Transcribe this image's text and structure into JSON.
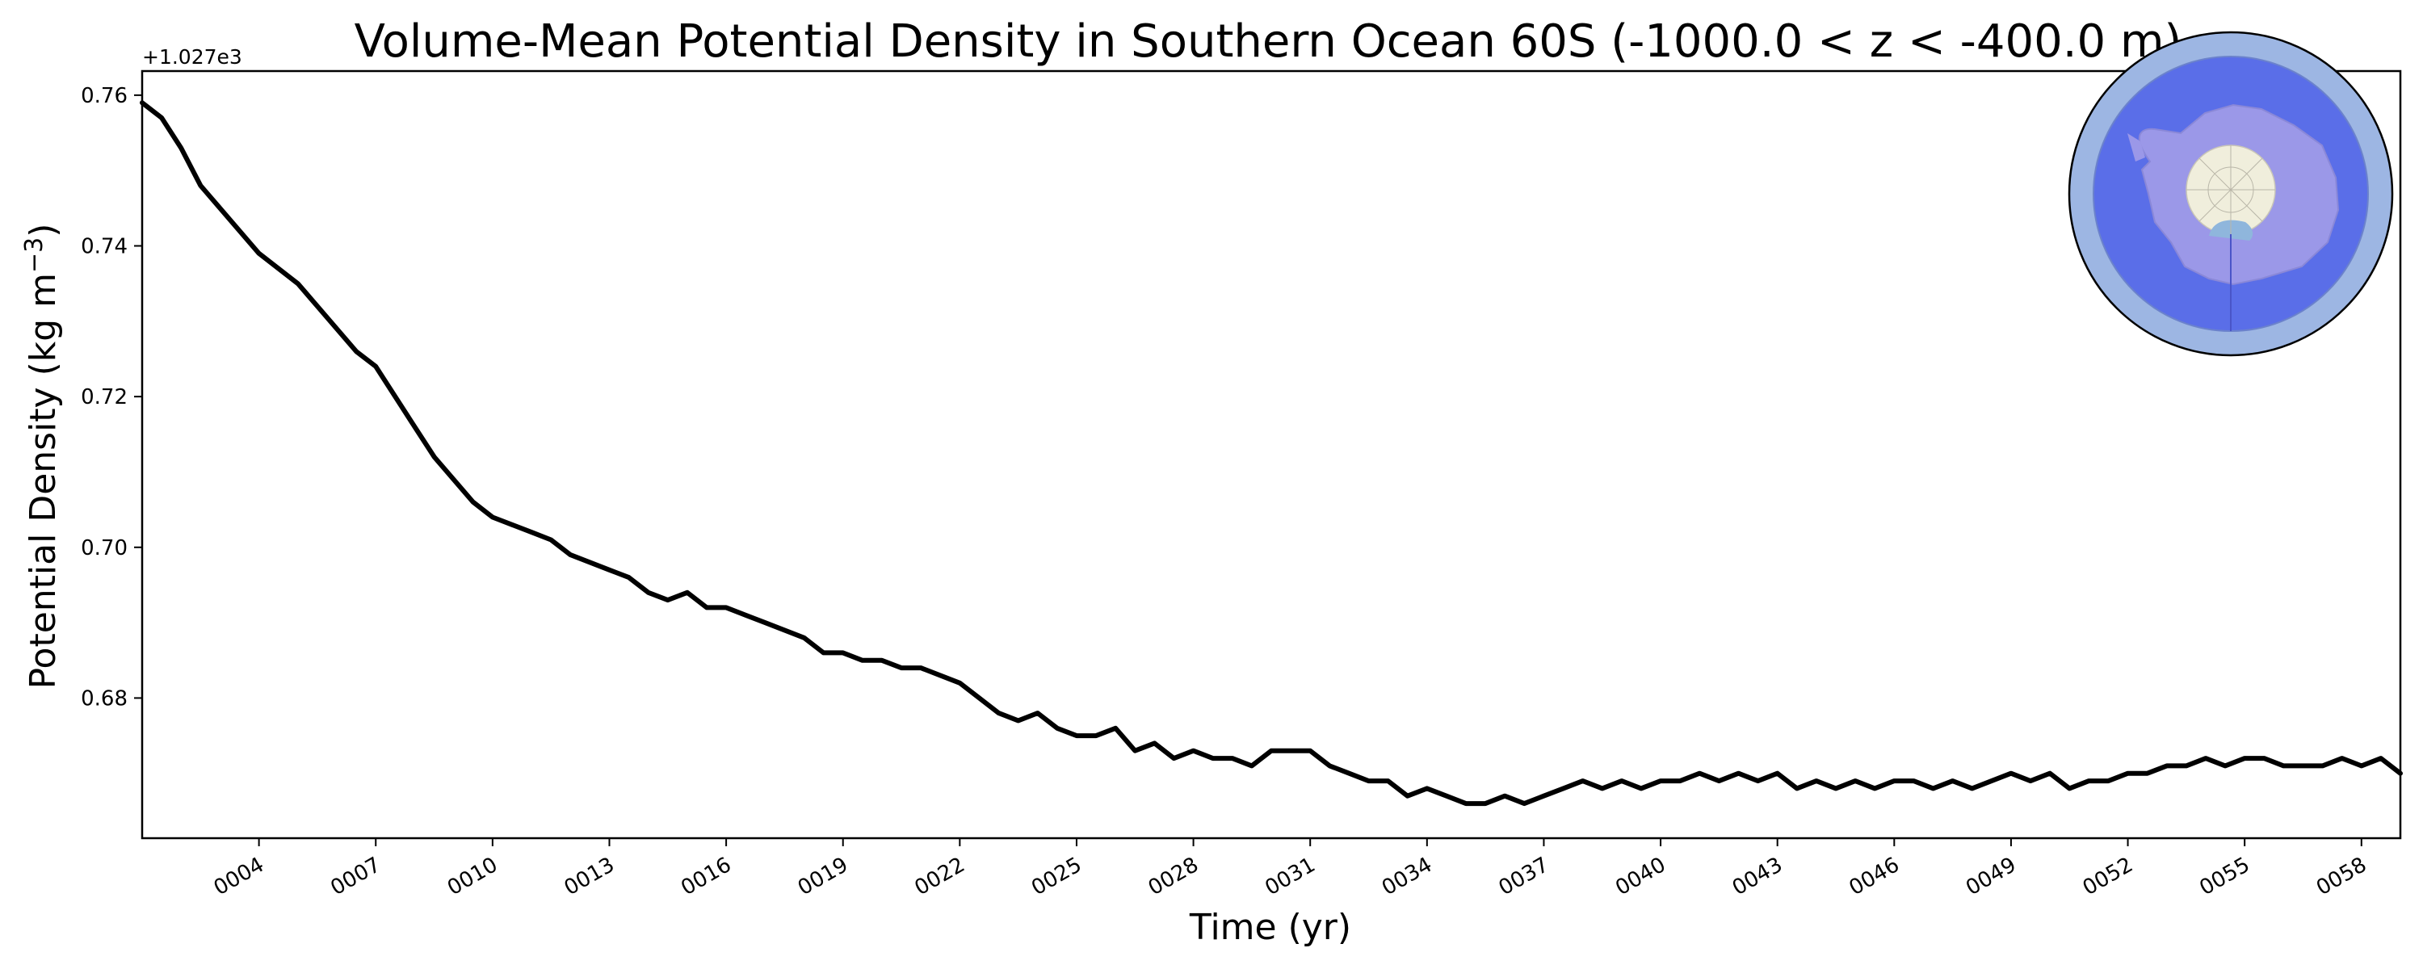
{
  "chart_data": {
    "type": "line",
    "title": "Volume-Mean Potential Density in Southern Ocean 60S (-1000.0 < z < -400.0 m)",
    "xlabel": "Time (yr)",
    "ylabel_main": "Potential Density (kg m",
    "ylabel_exp": "−3",
    "ylabel_close": ")",
    "offset_label": "+1.027e3",
    "xlim": [
      1.0,
      59.0
    ],
    "ylim": [
      0.6614,
      0.7632
    ],
    "xtick_values": [
      4,
      7,
      10,
      13,
      16,
      19,
      22,
      25,
      28,
      31,
      34,
      37,
      40,
      43,
      46,
      49,
      52,
      55,
      58
    ],
    "xtick_labels": [
      "0004",
      "0007",
      "0010",
      "0013",
      "0016",
      "0019",
      "0022",
      "0025",
      "0028",
      "0031",
      "0034",
      "0037",
      "0040",
      "0043",
      "0046",
      "0049",
      "0052",
      "0055",
      "0058"
    ],
    "ytick_values": [
      0.68,
      0.7,
      0.72,
      0.74,
      0.76
    ],
    "ytick_labels": [
      "0.68",
      "0.70",
      "0.72",
      "0.74",
      "0.76"
    ],
    "series": [
      {
        "name": "potential density",
        "color": "#000000",
        "x": [
          1.0,
          1.5,
          2.0,
          2.5,
          3.0,
          3.5,
          4.0,
          4.5,
          5.0,
          5.5,
          6.0,
          6.5,
          7.0,
          7.5,
          8.0,
          8.5,
          9.0,
          9.5,
          10.0,
          10.5,
          11.0,
          11.5,
          12.0,
          12.5,
          13.0,
          13.5,
          14.0,
          14.5,
          15.0,
          15.5,
          16.0,
          16.5,
          17.0,
          17.5,
          18.0,
          18.5,
          19.0,
          19.5,
          20.0,
          20.5,
          21.0,
          21.5,
          22.0,
          22.5,
          23.0,
          23.5,
          24.0,
          24.5,
          25.0,
          25.5,
          26.0,
          26.5,
          27.0,
          27.5,
          28.0,
          28.5,
          29.0,
          29.5,
          30.0,
          30.5,
          31.0,
          31.5,
          32.0,
          32.5,
          33.0,
          33.5,
          34.0,
          34.5,
          35.0,
          35.5,
          36.0,
          36.5,
          37.0,
          37.5,
          38.0,
          38.5,
          39.0,
          39.5,
          40.0,
          40.5,
          41.0,
          41.5,
          42.0,
          42.5,
          43.0,
          43.5,
          44.0,
          44.5,
          45.0,
          45.5,
          46.0,
          46.5,
          47.0,
          47.5,
          48.0,
          48.5,
          49.0,
          49.5,
          50.0,
          50.5,
          51.0,
          51.5,
          52.0,
          52.5,
          53.0,
          53.5,
          54.0,
          54.5,
          55.0,
          55.5,
          56.0,
          56.5,
          57.0,
          57.5,
          58.0,
          58.5,
          59.0
        ],
        "values": [
          0.759,
          0.757,
          0.753,
          0.748,
          0.745,
          0.742,
          0.739,
          0.737,
          0.735,
          0.732,
          0.729,
          0.726,
          0.724,
          0.72,
          0.716,
          0.712,
          0.709,
          0.706,
          0.704,
          0.703,
          0.702,
          0.701,
          0.699,
          0.698,
          0.697,
          0.696,
          0.694,
          0.693,
          0.694,
          0.692,
          0.692,
          0.691,
          0.69,
          0.689,
          0.688,
          0.686,
          0.686,
          0.685,
          0.685,
          0.684,
          0.684,
          0.683,
          0.682,
          0.68,
          0.678,
          0.677,
          0.678,
          0.676,
          0.675,
          0.675,
          0.676,
          0.673,
          0.674,
          0.672,
          0.673,
          0.672,
          0.672,
          0.671,
          0.673,
          0.673,
          0.673,
          0.671,
          0.67,
          0.669,
          0.669,
          0.667,
          0.668,
          0.667,
          0.666,
          0.666,
          0.667,
          0.666,
          0.667,
          0.668,
          0.669,
          0.668,
          0.669,
          0.668,
          0.669,
          0.669,
          0.67,
          0.669,
          0.67,
          0.669,
          0.67,
          0.668,
          0.669,
          0.668,
          0.669,
          0.668,
          0.669,
          0.669,
          0.668,
          0.669,
          0.668,
          0.669,
          0.67,
          0.669,
          0.67,
          0.668,
          0.669,
          0.669,
          0.67,
          0.67,
          0.671,
          0.671,
          0.672,
          0.671,
          0.672,
          0.672,
          0.671,
          0.671,
          0.671,
          0.672,
          0.671,
          0.672,
          0.67
        ]
      }
    ],
    "grid": false,
    "legend": "none",
    "inset": {
      "type": "polar-map",
      "placement": "top-right",
      "ocean_color": "#5a6ee8",
      "outer_ring_color": "#9db6e3",
      "land_color": "#9b98e8",
      "pole_color": "#f0eedc",
      "ice_color": "#8fb6dc"
    }
  }
}
